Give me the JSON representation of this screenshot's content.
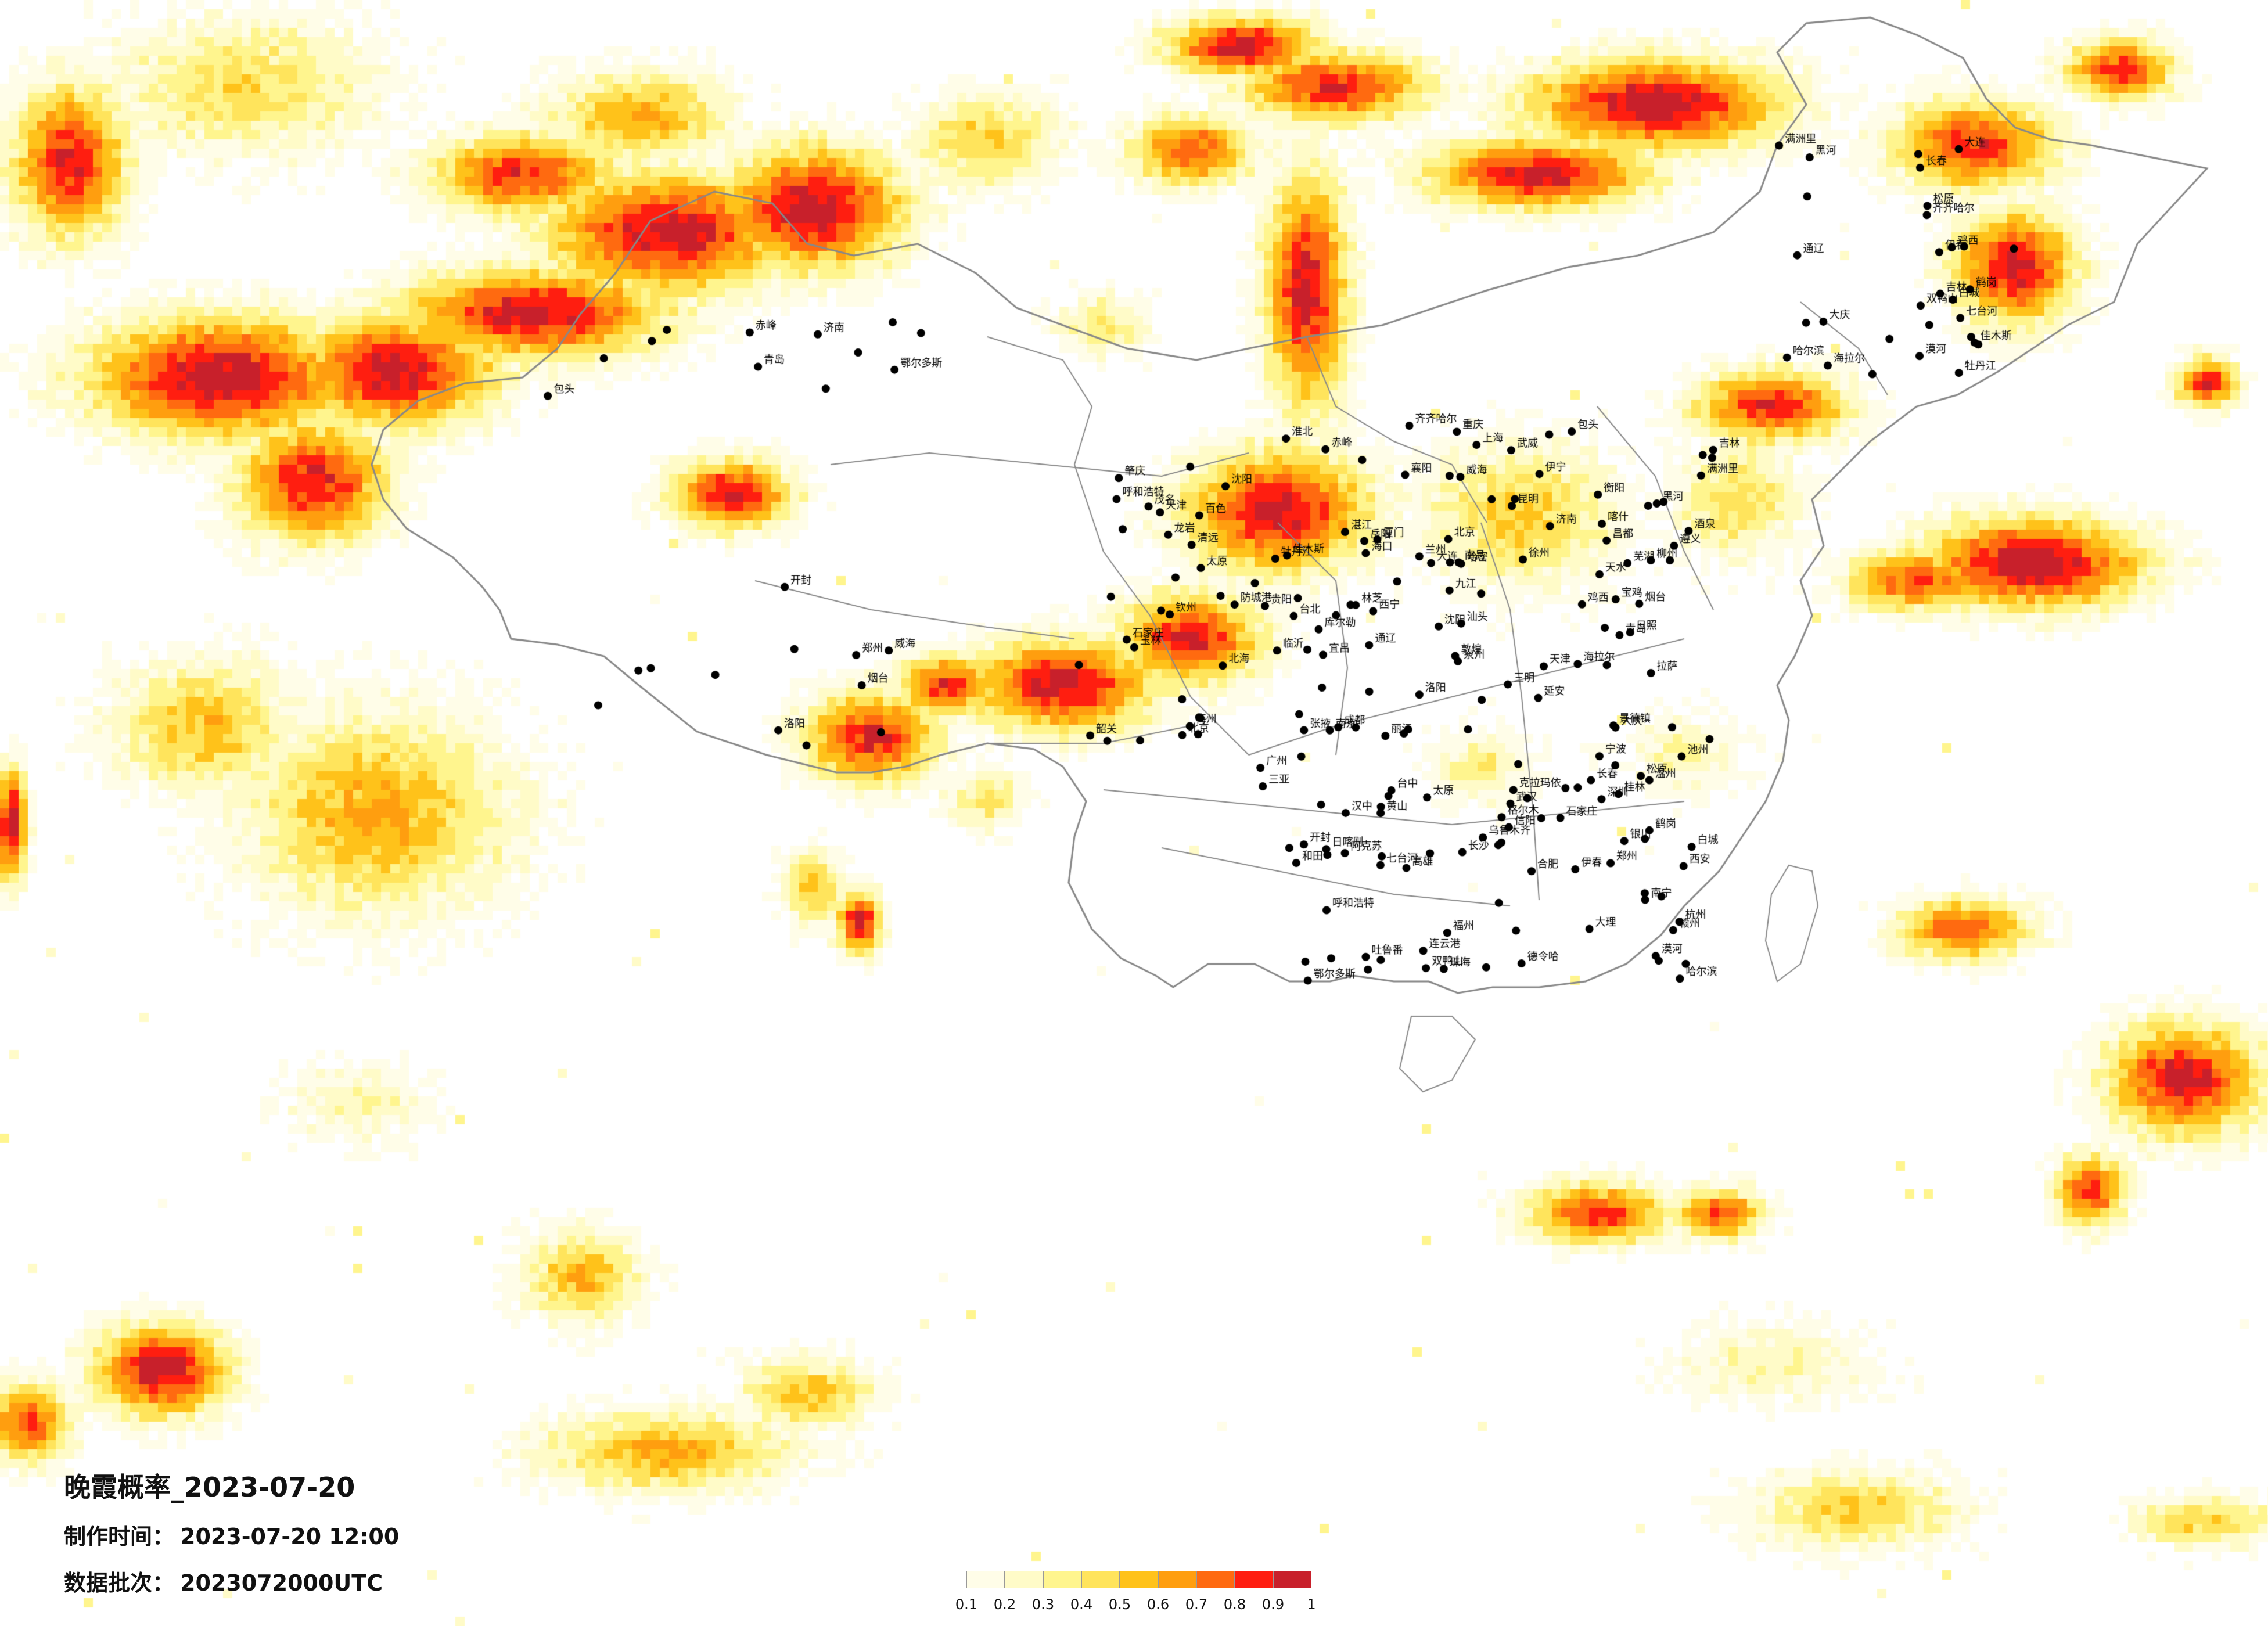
{
  "title": "晚霞概率_2023-07-20",
  "made_time": {
    "label": "制作时间：",
    "value": "2023-07-20 12:00"
  },
  "batch": {
    "label": "数据批次：",
    "value": "2023072000UTC"
  },
  "legend": {
    "ticks": [
      "0.1",
      "0.2",
      "0.3",
      "0.4",
      "0.5",
      "0.6",
      "0.7",
      "0.8",
      "0.9",
      "1"
    ],
    "colors": [
      "#fffde8",
      "#fffbc8",
      "#fff58e",
      "#ffe45c",
      "#ffc21a",
      "#ff9e0f",
      "#ff6a10",
      "#ff1e10",
      "#c8202b"
    ]
  },
  "colors": {
    "border": "#888888",
    "city_dot": "#000000",
    "background": "#ffffff"
  },
  "cities": [
    "北京",
    "天津",
    "石家庄",
    "太原",
    "呼和浩特",
    "沈阳",
    "大连",
    "长春",
    "吉林",
    "哈尔滨",
    "齐齐哈尔",
    "佳木斯",
    "牡丹江",
    "黑河",
    "漠河",
    "满洲里",
    "海拉尔",
    "鸡西",
    "伊春",
    "鹤岗",
    "双鸭山",
    "七台河",
    "大庆",
    "松原",
    "白城",
    "通辽",
    "赤峰",
    "包头",
    "鄂尔多斯",
    "济南",
    "青岛",
    "烟台",
    "威海",
    "郑州",
    "洛阳",
    "开封",
    "西安",
    "宝鸡",
    "延安",
    "汉中",
    "兰州",
    "天水",
    "西宁",
    "银川",
    "乌鲁木齐",
    "克拉玛依",
    "伊宁",
    "阿克苏",
    "喀什",
    "和田",
    "库尔勒",
    "哈密",
    "吐鲁番",
    "拉萨",
    "日喀则",
    "林芝",
    "昌都",
    "成都",
    "重庆",
    "贵阳",
    "遵义",
    "昆明",
    "大理",
    "丽江",
    "南宁",
    "桂林",
    "柳州",
    "广州",
    "深圳",
    "珠海",
    "汕头",
    "湛江",
    "海口",
    "三亚",
    "福州",
    "厦门",
    "泉州",
    "南昌",
    "赣州",
    "长沙",
    "岳阳",
    "衡阳",
    "武汉",
    "宜昌",
    "襄阳",
    "合肥",
    "芜湖",
    "南京",
    "上海",
    "杭州",
    "宁波",
    "温州",
    "台北",
    "台中",
    "高雄",
    "格尔木",
    "德令哈",
    "敦煌",
    "酒泉",
    "张掖",
    "武威",
    "信阳",
    "淮北",
    "徐州",
    "连云港",
    "临沂",
    "日照",
    "九江",
    "景德镇",
    "黄山",
    "池州",
    "三明",
    "龙岩",
    "梅州",
    "韶关",
    "清远",
    "肇庆",
    "茂名",
    "玉林",
    "百色",
    "钦州",
    "北海",
    "防城港"
  ]
}
